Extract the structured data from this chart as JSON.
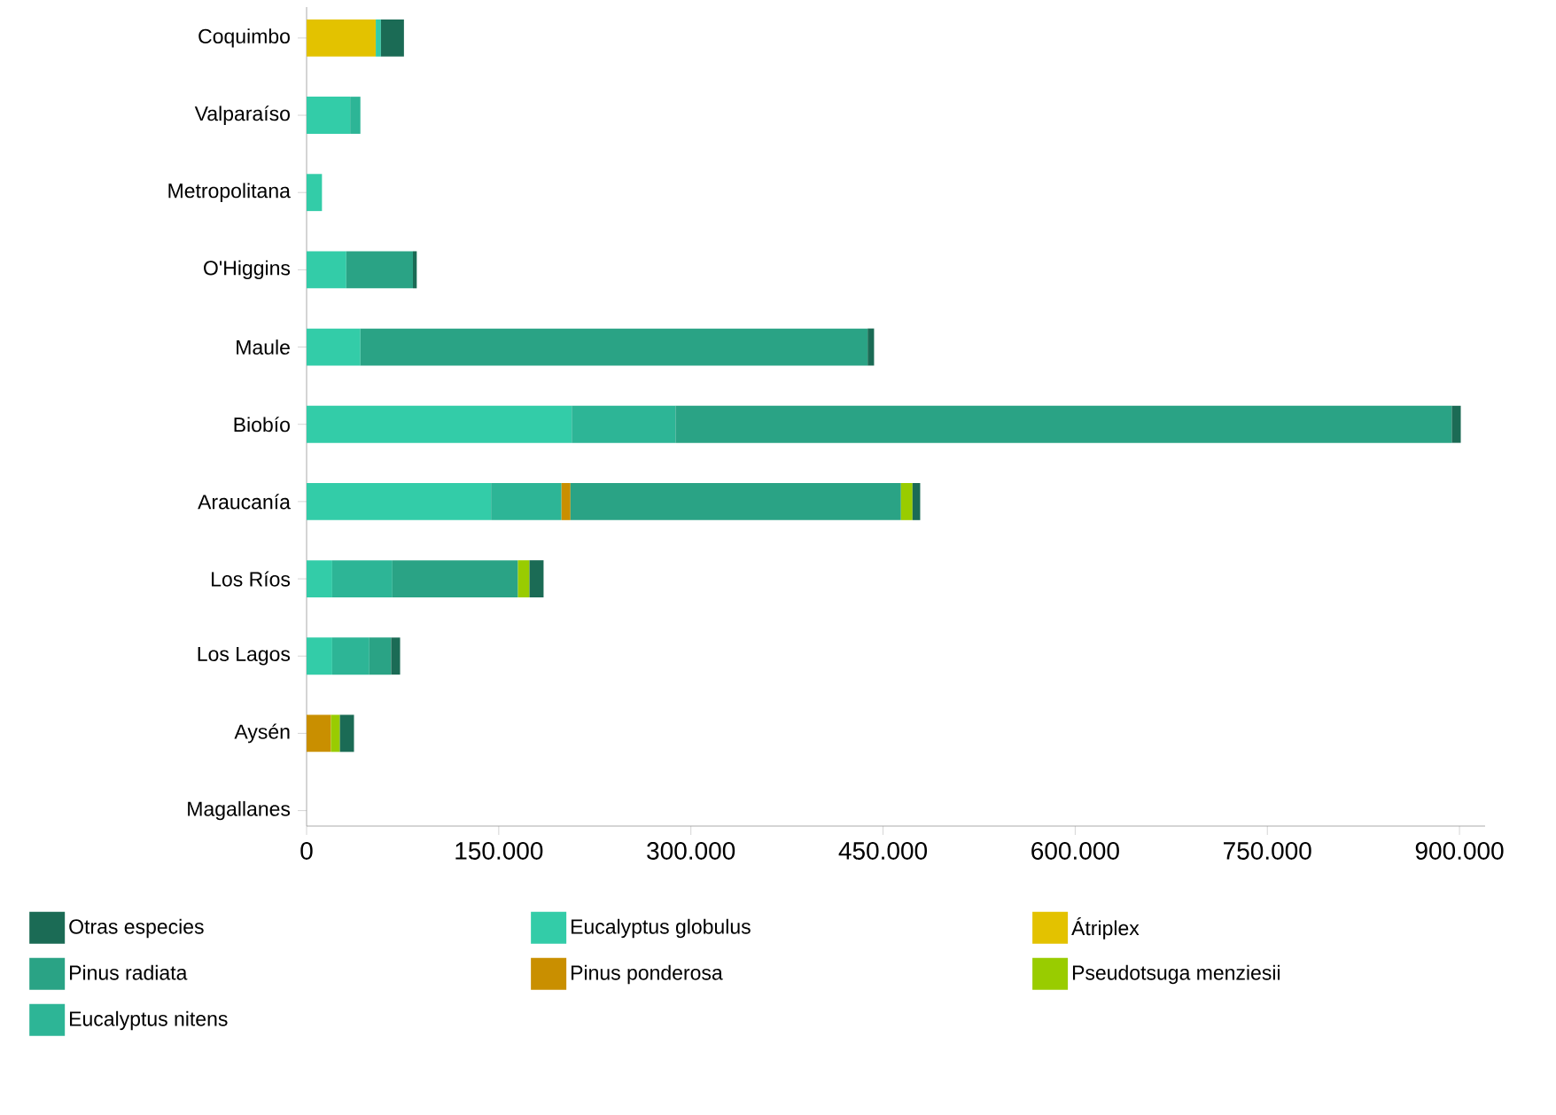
{
  "chart_data": {
    "type": "bar",
    "orientation": "horizontal",
    "stacked": true,
    "legend": "bottom",
    "grid": false,
    "categories": [
      "Coquimbo",
      "Valparaíso",
      "Metropolitana",
      "O'Higgins",
      "Maule",
      "Biobío",
      "Araucanía",
      "Los Ríos",
      "Los Lagos",
      "Aysén",
      "Magallanes"
    ],
    "xlim": [
      0,
      920000
    ],
    "xticks": [
      {
        "value": 0,
        "label": "0"
      },
      {
        "value": 150000,
        "label": "150.000"
      },
      {
        "value": 300000,
        "label": "300.000"
      },
      {
        "value": 450000,
        "label": "450.000"
      },
      {
        "value": 600000,
        "label": "600.000"
      },
      {
        "value": 750000,
        "label": "750.000"
      },
      {
        "value": 900000,
        "label": "900.000"
      }
    ],
    "series": [
      {
        "name": "Átriplex",
        "color": "#e3c200",
        "values": [
          54000,
          null,
          null,
          null,
          null,
          null,
          null,
          null,
          null,
          null,
          null
        ]
      },
      {
        "name": "Eucalyptus globulus",
        "color": "#33cca8",
        "values": [
          4000,
          34000,
          12000,
          31000,
          42000,
          207000,
          144000,
          20000,
          20000,
          null,
          null
        ]
      },
      {
        "name": "Eucalyptus nitens",
        "color": "#2db596",
        "values": [
          null,
          8000,
          null,
          null,
          null,
          81000,
          55000,
          47000,
          29000,
          null,
          null
        ]
      },
      {
        "name": "Pinus ponderosa",
        "color": "#c98f00",
        "values": [
          null,
          null,
          null,
          null,
          null,
          null,
          7000,
          null,
          null,
          19000,
          null
        ]
      },
      {
        "name": "Pinus radiata",
        "color": "#2aa385",
        "values": [
          null,
          null,
          null,
          52000,
          396000,
          606000,
          258000,
          98000,
          17000,
          null,
          null
        ]
      },
      {
        "name": "Pseudotsuga menziesii",
        "color": "#99cc00",
        "values": [
          null,
          null,
          null,
          null,
          null,
          null,
          9000,
          9000,
          null,
          7000,
          null
        ]
      },
      {
        "name": "Otras especies",
        "color": "#1b6b55",
        "values": [
          18000,
          null,
          null,
          3000,
          5000,
          7000,
          6000,
          11000,
          7000,
          11000,
          null
        ]
      }
    ]
  }
}
